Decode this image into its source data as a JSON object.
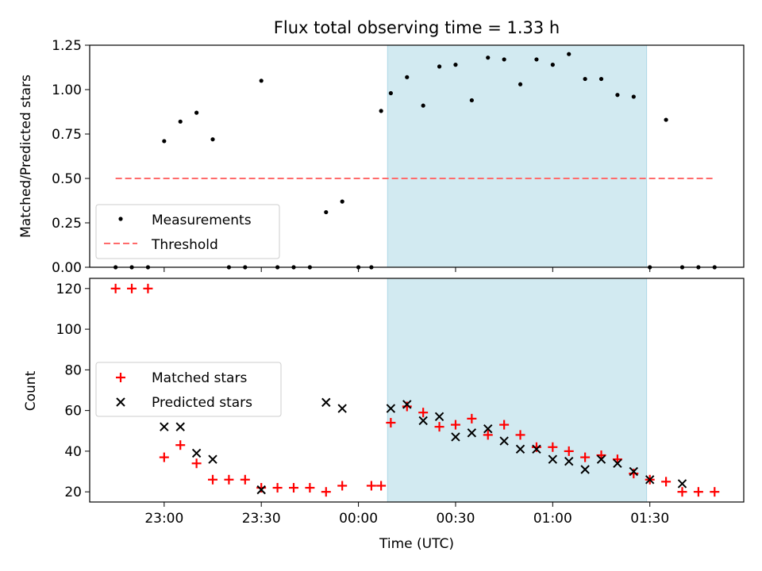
{
  "figure_title": "Flux total observing time = 1.33 h",
  "colors": {
    "shade": "#add8e6",
    "threshold": "#ff6b6b",
    "matched": "#ff0000",
    "predicted": "#000000",
    "measure": "#000000"
  },
  "chart_data": [
    {
      "type": "scatter",
      "title": "Flux total observing time = 1.33 h",
      "xlabel": "",
      "ylabel": "Matched/Predicted stars",
      "ylim": [
        0,
        1.25
      ],
      "yticks": [
        "0.00",
        "0.25",
        "0.50",
        "0.75",
        "1.00",
        "1.25"
      ],
      "xlim": [
        "22:37",
        "01:59"
      ],
      "shaded_span": [
        "00:09",
        "01:29"
      ],
      "legend": {
        "position": "lower-left",
        "entries": [
          "Measurements",
          "Threshold"
        ]
      },
      "series": [
        {
          "name": "Measurements",
          "x": [
            "22:45",
            "22:50",
            "22:55",
            "23:00",
            "23:05",
            "23:10",
            "23:15",
            "23:20",
            "23:25",
            "23:30",
            "23:35",
            "23:40",
            "23:45",
            "23:50",
            "23:55",
            "00:00",
            "00:04",
            "00:07",
            "00:10",
            "00:15",
            "00:20",
            "00:25",
            "00:30",
            "00:35",
            "00:40",
            "00:45",
            "00:50",
            "00:55",
            "01:00",
            "01:05",
            "01:10",
            "01:15",
            "01:20",
            "01:25",
            "01:30",
            "01:35",
            "01:40",
            "01:45",
            "01:50"
          ],
          "y": [
            0,
            0,
            0,
            0.71,
            0.82,
            0.87,
            0.72,
            0,
            0,
            1.05,
            0,
            0,
            0,
            0.31,
            0.37,
            0,
            0,
            0.88,
            0.98,
            1.07,
            0.91,
            1.13,
            1.14,
            0.94,
            1.18,
            1.17,
            1.03,
            1.17,
            1.14,
            1.2,
            1.06,
            1.06,
            0.97,
            0.96,
            0,
            0.83,
            0,
            0,
            0
          ]
        },
        {
          "name": "Threshold",
          "x": [
            "22:45",
            "01:50"
          ],
          "y": [
            0.5,
            0.5
          ]
        }
      ]
    },
    {
      "type": "scatter",
      "title": "",
      "xlabel": "Time (UTC)",
      "ylabel": "Count",
      "ylim": [
        15,
        125
      ],
      "yticks": [
        "20",
        "40",
        "60",
        "80",
        "100",
        "120"
      ],
      "xlim": [
        "22:37",
        "01:59"
      ],
      "xticks": [
        "23:00",
        "23:30",
        "00:00",
        "00:30",
        "01:00",
        "01:30"
      ],
      "shaded_span": [
        "00:09",
        "01:29"
      ],
      "legend": {
        "position": "center-left",
        "entries": [
          "Matched stars",
          "Predicted stars"
        ]
      },
      "series": [
        {
          "name": "Matched stars",
          "x": [
            "22:45",
            "22:50",
            "22:55",
            "23:00",
            "23:05",
            "23:10",
            "23:15",
            "23:20",
            "23:25",
            "23:30",
            "23:35",
            "23:40",
            "23:45",
            "23:50",
            "23:55",
            "00:04",
            "00:07",
            "00:10",
            "00:15",
            "00:20",
            "00:25",
            "00:30",
            "00:35",
            "00:40",
            "00:45",
            "00:50",
            "00:55",
            "01:00",
            "01:05",
            "01:10",
            "01:15",
            "01:20",
            "01:25",
            "01:30",
            "01:35",
            "01:40",
            "01:45",
            "01:50"
          ],
          "y": [
            120,
            120,
            120,
            37,
            43,
            34,
            26,
            26,
            26,
            22,
            22,
            22,
            22,
            20,
            23,
            23,
            23,
            54,
            62,
            59,
            52,
            53,
            56,
            48,
            53,
            48,
            42,
            42,
            40,
            37,
            38,
            36,
            29,
            26,
            25,
            20,
            20,
            20
          ]
        },
        {
          "name": "Predicted stars",
          "x": [
            "23:00",
            "23:05",
            "23:10",
            "23:15",
            "23:30",
            "23:50",
            "23:55",
            "00:10",
            "00:15",
            "00:20",
            "00:25",
            "00:30",
            "00:35",
            "00:40",
            "00:45",
            "00:50",
            "00:55",
            "01:00",
            "01:05",
            "01:10",
            "01:15",
            "01:20",
            "01:25",
            "01:30",
            "01:40"
          ],
          "y": [
            52,
            52,
            39,
            36,
            21,
            64,
            61,
            61,
            63,
            55,
            57,
            47,
            49,
            51,
            45,
            41,
            41,
            36,
            35,
            31,
            36,
            34,
            30,
            26,
            24
          ]
        }
      ]
    }
  ]
}
